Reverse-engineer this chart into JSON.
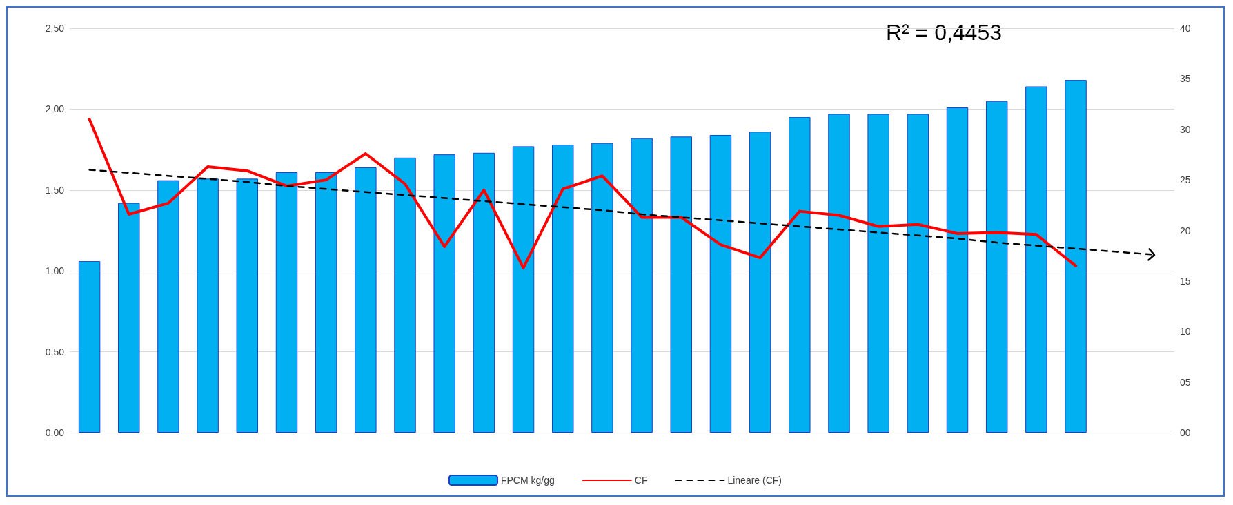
{
  "chart_data": {
    "type": "bar",
    "categories": [
      null,
      null,
      null,
      null,
      null,
      null,
      null,
      null,
      null,
      null,
      null,
      null,
      null,
      null,
      null,
      null,
      null,
      null,
      null,
      null,
      null,
      null,
      null,
      null,
      null,
      null,
      null,
      null
    ],
    "series": [
      {
        "name": "FPCM kg/gg",
        "color": "#00b0f0",
        "values": [
          1.06,
          1.42,
          1.56,
          1.57,
          1.57,
          1.61,
          1.61,
          1.64,
          1.7,
          1.72,
          1.73,
          1.77,
          1.78,
          1.79,
          1.82,
          1.83,
          1.84,
          1.86,
          1.95,
          1.97,
          1.97,
          1.97,
          2.01,
          2.05,
          2.14,
          2.18,
          null,
          null
        ]
      },
      {
        "name": "CF",
        "type": "line",
        "axis": "y2",
        "color": "#ff0000",
        "line_style": "solid",
        "values": [
          31.0,
          21.6,
          22.7,
          26.3,
          25.9,
          24.4,
          25.0,
          27.6,
          24.6,
          18.4,
          24.0,
          16.3,
          24.1,
          25.4,
          21.3,
          21.3,
          18.6,
          17.3,
          21.9,
          21.5,
          20.4,
          20.6,
          19.7,
          19.8,
          19.6,
          16.5,
          null,
          null
        ]
      },
      {
        "name": "Lineare (CF)",
        "type": "line",
        "axis": "y2",
        "color": "#000000",
        "line_style": "dashed",
        "values": [
          26.0,
          25.7,
          25.4,
          25.1,
          24.8,
          24.4,
          24.1,
          23.8,
          23.5,
          23.2,
          22.9,
          22.6,
          22.3,
          22.0,
          21.6,
          21.3,
          21.0,
          20.7,
          20.4,
          20.1,
          19.8,
          19.5,
          19.2,
          18.8,
          18.5,
          18.2,
          17.9,
          17.6
        ]
      }
    ],
    "ylim": [
      0,
      2.5
    ],
    "yticks": [
      {
        "value": 0,
        "label": "0,00"
      },
      {
        "value": 0.5,
        "label": "0,50"
      },
      {
        "value": 1,
        "label": "1,00"
      },
      {
        "value": 1.5,
        "label": "1,50"
      },
      {
        "value": 2,
        "label": "2,00"
      },
      {
        "value": 2.5,
        "label": "2,50"
      }
    ],
    "y2lim": [
      0,
      40
    ],
    "y2ticks": [
      {
        "value": 0,
        "label": "00"
      },
      {
        "value": 5,
        "label": "05"
      },
      10,
      15,
      20,
      25,
      30,
      35,
      40
    ],
    "grid": "y",
    "legend": "bottom",
    "marker": "none",
    "annotations": [
      "R² = 0,4453"
    ]
  }
}
